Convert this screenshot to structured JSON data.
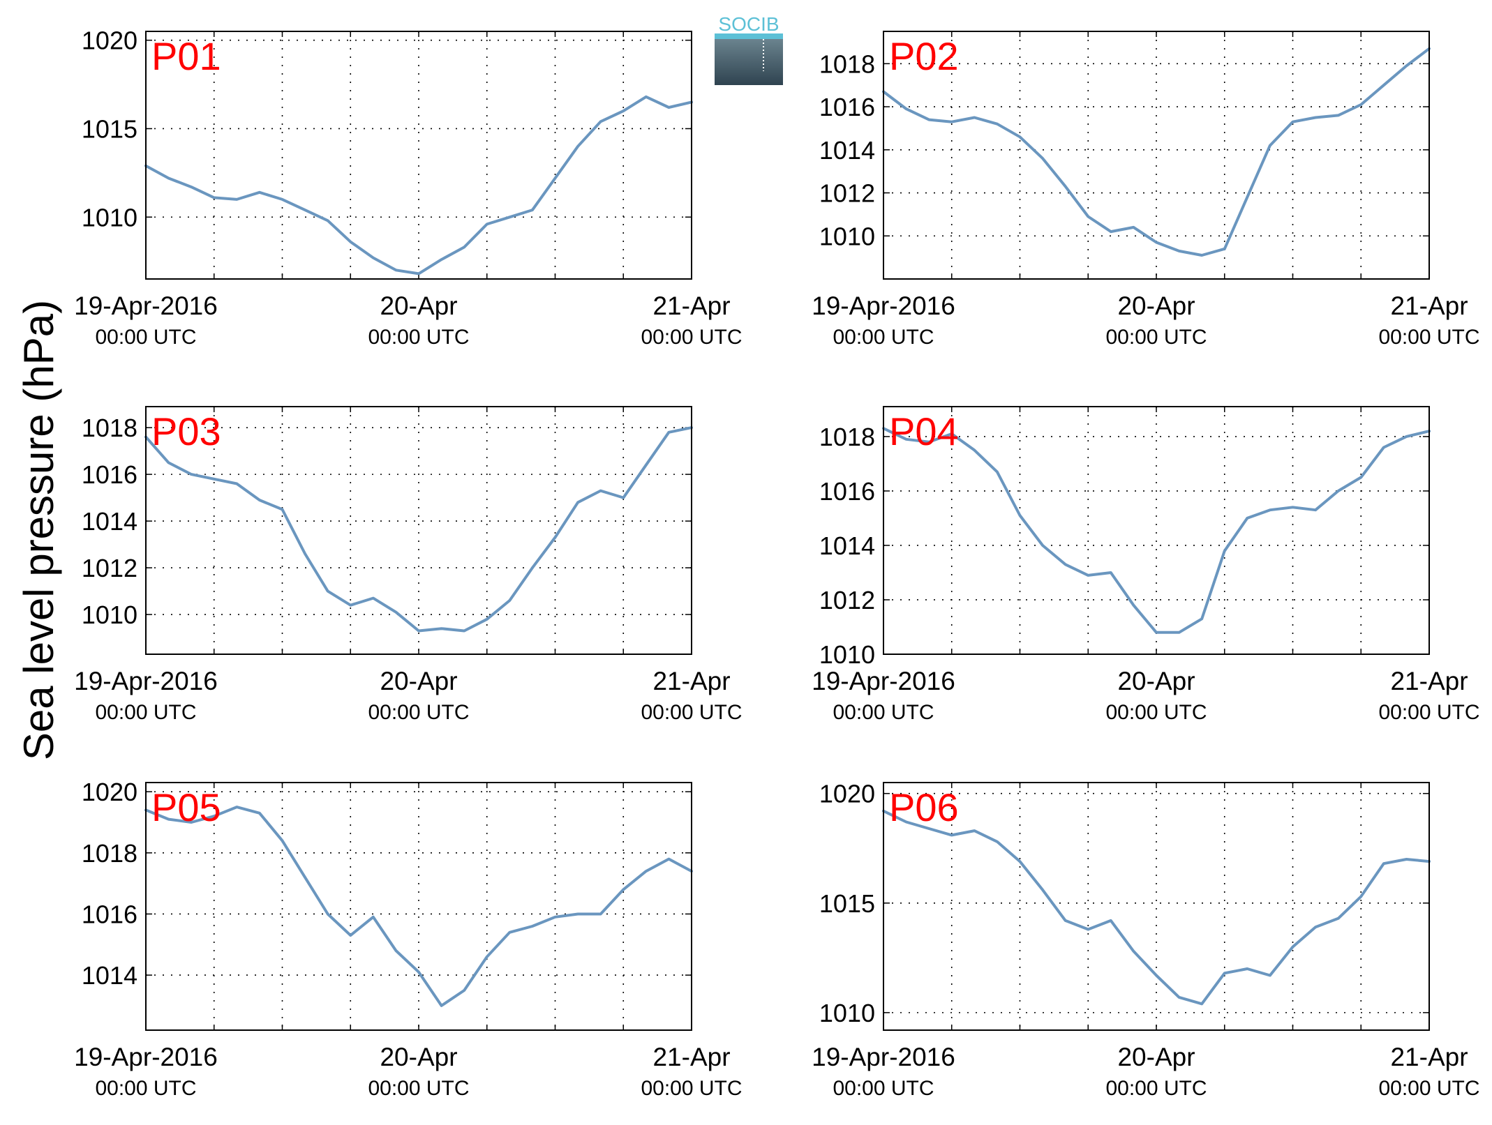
{
  "figure": {
    "ylabel": "Sea level pressure (hPa)",
    "logo_text": "SOCIB",
    "line_color": "#6a96bf",
    "station_label_color": "#ff0000",
    "x_ticks": [
      {
        "day": 0,
        "line1": "19-Apr-2016",
        "line2": "00:00 UTC"
      },
      {
        "day": 1,
        "line1": "20-Apr",
        "line2": "00:00 UTC"
      },
      {
        "day": 2,
        "line1": "21-Apr",
        "line2": "00:00 UTC"
      }
    ]
  },
  "chart_data": [
    {
      "type": "line",
      "station": "P01",
      "xlim": [
        "2016-04-19 00:00",
        "2016-04-21 00:00"
      ],
      "ylim": [
        1006.5,
        1020.5
      ],
      "yticks": [
        1010,
        1015,
        1020
      ],
      "grid": true,
      "x_hours": [
        0,
        2,
        4,
        6,
        8,
        10,
        12,
        14,
        16,
        18,
        20,
        22,
        24,
        26,
        28,
        30,
        32,
        34,
        36,
        38,
        40,
        42,
        44,
        46,
        48
      ],
      "values": [
        1012.9,
        1012.2,
        1011.7,
        1011.1,
        1011.0,
        1011.4,
        1011.0,
        1010.4,
        1009.8,
        1008.6,
        1007.7,
        1007.0,
        1006.8,
        1007.6,
        1008.3,
        1009.6,
        1010.0,
        1010.4,
        1012.2,
        1014.0,
        1015.4,
        1016.0,
        1016.8,
        1016.2,
        1016.5
      ]
    },
    {
      "type": "line",
      "station": "P02",
      "xlim": [
        "2016-04-19 00:00",
        "2016-04-21 00:00"
      ],
      "ylim": [
        1008.0,
        1019.5
      ],
      "yticks": [
        1010,
        1012,
        1014,
        1016,
        1018
      ],
      "grid": true,
      "x_hours": [
        0,
        2,
        4,
        6,
        8,
        10,
        12,
        14,
        16,
        18,
        20,
        22,
        24,
        26,
        28,
        30,
        32,
        34,
        36,
        38,
        40,
        42,
        44,
        46,
        48
      ],
      "values": [
        1016.7,
        1015.9,
        1015.4,
        1015.3,
        1015.5,
        1015.2,
        1014.6,
        1013.6,
        1012.3,
        1010.9,
        1010.2,
        1010.4,
        1009.7,
        1009.3,
        1009.1,
        1009.4,
        1011.8,
        1014.2,
        1015.3,
        1015.5,
        1015.6,
        1016.1,
        1017.0,
        1017.9,
        1018.7
      ]
    },
    {
      "type": "line",
      "station": "P03",
      "xlim": [
        "2016-04-19 00:00",
        "2016-04-21 00:00"
      ],
      "ylim": [
        1008.3,
        1018.9
      ],
      "yticks": [
        1010,
        1012,
        1014,
        1016,
        1018
      ],
      "grid": true,
      "x_hours": [
        0,
        2,
        4,
        6,
        8,
        10,
        12,
        14,
        16,
        18,
        20,
        22,
        24,
        26,
        28,
        30,
        32,
        34,
        36,
        38,
        40,
        42,
        44,
        46,
        48
      ],
      "values": [
        1017.6,
        1016.5,
        1016.0,
        1015.8,
        1015.6,
        1014.9,
        1014.5,
        1012.6,
        1011.0,
        1010.4,
        1010.7,
        1010.1,
        1009.3,
        1009.4,
        1009.3,
        1009.8,
        1010.6,
        1012.0,
        1013.3,
        1014.8,
        1015.3,
        1015.0,
        1016.4,
        1017.8,
        1018.0
      ]
    },
    {
      "type": "line",
      "station": "P04",
      "xlim": [
        "2016-04-19 00:00",
        "2016-04-21 00:00"
      ],
      "ylim": [
        1010.0,
        1019.1
      ],
      "yticks": [
        1010,
        1012,
        1014,
        1016,
        1018
      ],
      "grid": true,
      "x_hours": [
        0,
        2,
        4,
        6,
        8,
        10,
        12,
        14,
        16,
        18,
        20,
        22,
        24,
        26,
        28,
        30,
        32,
        34,
        36,
        38,
        40,
        42,
        44,
        46,
        48
      ],
      "values": [
        1018.3,
        1017.9,
        1017.8,
        1018.1,
        1017.5,
        1016.7,
        1015.1,
        1014.0,
        1013.3,
        1012.9,
        1013.0,
        1011.8,
        1010.8,
        1010.8,
        1011.3,
        1013.8,
        1015.0,
        1015.3,
        1015.4,
        1015.3,
        1016.0,
        1016.5,
        1017.6,
        1018.0,
        1018.2
      ]
    },
    {
      "type": "line",
      "station": "P05",
      "xlim": [
        "2016-04-19 00:00",
        "2016-04-21 00:00"
      ],
      "ylim": [
        1012.2,
        1020.3
      ],
      "yticks": [
        1014,
        1016,
        1018,
        1020
      ],
      "grid": true,
      "x_hours": [
        0,
        2,
        4,
        6,
        8,
        10,
        12,
        14,
        16,
        18,
        20,
        22,
        24,
        26,
        28,
        30,
        32,
        34,
        36,
        38,
        40,
        42,
        44,
        46,
        48
      ],
      "values": [
        1019.4,
        1019.1,
        1019.0,
        1019.2,
        1019.5,
        1019.3,
        1018.4,
        1017.2,
        1016.0,
        1015.3,
        1015.9,
        1014.8,
        1014.1,
        1013.0,
        1013.5,
        1014.6,
        1015.4,
        1015.6,
        1015.9,
        1016.0,
        1016.0,
        1016.8,
        1017.4,
        1017.8,
        1017.4
      ]
    },
    {
      "type": "line",
      "station": "P06",
      "xlim": [
        "2016-04-19 00:00",
        "2016-04-21 00:00"
      ],
      "ylim": [
        1009.2,
        1020.5
      ],
      "yticks": [
        1010,
        1015,
        1020
      ],
      "grid": true,
      "x_hours": [
        0,
        2,
        4,
        6,
        8,
        10,
        12,
        14,
        16,
        18,
        20,
        22,
        24,
        26,
        28,
        30,
        32,
        34,
        36,
        38,
        40,
        42,
        44,
        46,
        48
      ],
      "values": [
        1019.2,
        1018.7,
        1018.4,
        1018.1,
        1018.3,
        1017.8,
        1016.9,
        1015.6,
        1014.2,
        1013.8,
        1014.2,
        1012.8,
        1011.7,
        1010.7,
        1010.4,
        1011.8,
        1012.0,
        1011.7,
        1013.0,
        1013.9,
        1014.3,
        1015.3,
        1016.8,
        1017.0,
        1016.9
      ]
    }
  ]
}
